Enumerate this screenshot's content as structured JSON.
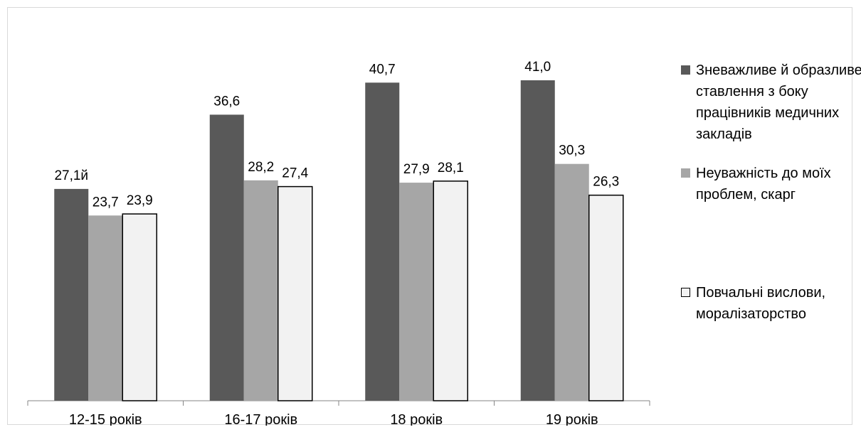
{
  "chart_data": {
    "type": "bar",
    "categories": [
      "12-15 років",
      "16-17 років",
      "18 років",
      "19 років"
    ],
    "series": [
      {
        "name": "Зневажливе й образливе ставлення з боку працівників медичних закладів",
        "values": [
          27.1,
          36.6,
          40.7,
          41.0
        ],
        "labels": [
          "27,1й",
          "36,6",
          "40,7",
          "41,0"
        ],
        "color": "#595959"
      },
      {
        "name": "Неуважність до моїх проблем, скарг",
        "values": [
          23.7,
          28.2,
          27.9,
          30.3
        ],
        "labels": [
          "23,7",
          "28,2",
          "27,9",
          "30,3"
        ],
        "color": "#a6a6a6"
      },
      {
        "name": "Повчальні вислови, моралізаторство",
        "values": [
          23.9,
          27.4,
          28.1,
          26.3
        ],
        "labels": [
          "23,9",
          "27,4",
          "28,1",
          "26,3"
        ],
        "color": "#f2f2f2"
      }
    ],
    "ylim": [
      0,
      50
    ],
    "legend_position": "right",
    "grid": false
  }
}
